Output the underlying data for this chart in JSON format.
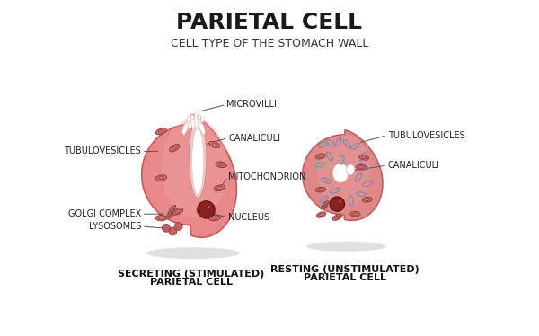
{
  "title": "PARIETAL CELL",
  "subtitle": "CELL TYPE OF THE STOMACH WALL",
  "title_fontsize": 18,
  "subtitle_fontsize": 9,
  "title_color": "#1a1a1a",
  "subtitle_color": "#333333",
  "bg_color": "#ffffff",
  "cell_fill_color": "#e8888a",
  "cell_edge_color": "#c85a5a",
  "label_color": "#222222",
  "label_fontsize": 7,
  "nucleus_color": "#8b2020",
  "left_label1": "MICROVILLI",
  "left_label2": "CANALICULI",
  "left_label3": "MITOCHONDRION",
  "left_label4": "NUCLEUS",
  "left_label5": "GOLGI COMPLEX",
  "left_label6": "LYSOSOMES",
  "left_label7": "TUBULOVESICLES",
  "right_label1": "TUBULOVESICLES",
  "right_label2": "CANALICULI",
  "left_caption1": "SECRETING (STIMULATED)",
  "left_caption2": "PARIETAL CELL",
  "right_caption1": "RESTING (UNSTIMULATED)",
  "right_caption2": "PARIETAL CELL"
}
